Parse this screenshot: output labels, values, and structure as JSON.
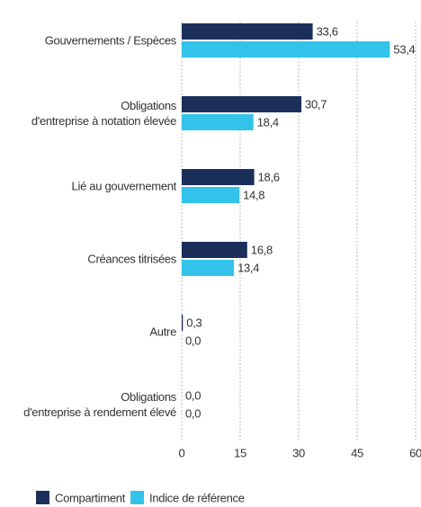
{
  "chart_data": {
    "type": "bar",
    "orientation": "horizontal",
    "categories": [
      "Gouvernements / Espèces",
      "Obligations\nd'entreprise à notation élevée",
      "Lié au gouvernement",
      "Créances titrisées",
      "Autre",
      "Obligations\nd'entreprise à rendement élevé"
    ],
    "series": [
      {
        "name": "Compartiment",
        "color": "#1b2f5b",
        "values": [
          33.6,
          30.7,
          18.6,
          16.8,
          0.3,
          0.0
        ],
        "value_labels": [
          "33,6",
          "30,7",
          "18,6",
          "16,8",
          "0,3",
          "0,0"
        ]
      },
      {
        "name": "Indice de référence",
        "color": "#33c3ea",
        "values": [
          53.4,
          18.4,
          14.8,
          13.4,
          0.0,
          0.0
        ],
        "value_labels": [
          "53,4",
          "18,4",
          "14,8",
          "13,4",
          "0,0",
          "0,0"
        ]
      }
    ],
    "xlim": [
      0,
      60
    ],
    "xticks": [
      0,
      15,
      30,
      45,
      60
    ],
    "grid": true,
    "legend": "bottom"
  }
}
